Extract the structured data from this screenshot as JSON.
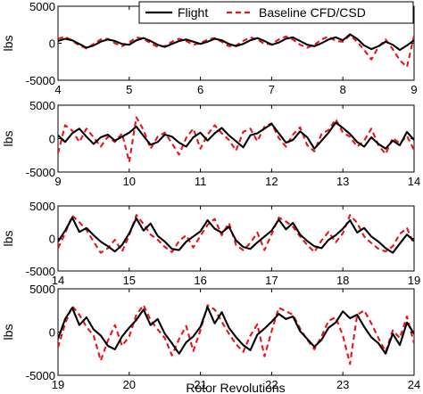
{
  "chart_data": {
    "type": "line",
    "xlabel": "Rotor Revolutions",
    "ylabel": "lbs",
    "legend": {
      "placement": "top",
      "entries": [
        {
          "label": "Flight",
          "color": "#000000",
          "style": "solid"
        },
        {
          "label": "Baseline CFD/CSD",
          "color": "#e8141c",
          "style": "dashed"
        }
      ]
    },
    "ylim": [
      -5000,
      5000
    ],
    "yticks": [
      5000,
      0,
      -5000
    ],
    "panels": [
      {
        "xlim": [
          4,
          9
        ],
        "xticks": [
          4,
          5,
          6,
          7,
          8,
          9
        ],
        "series": [
          {
            "name": "Flight",
            "x": [
              4.0,
              4.1,
              4.2,
              4.3,
              4.4,
              4.5,
              4.6,
              4.7,
              4.8,
              4.9,
              5.0,
              5.1,
              5.2,
              5.3,
              5.4,
              5.5,
              5.6,
              5.7,
              5.8,
              5.9,
              6.0,
              6.1,
              6.2,
              6.3,
              6.4,
              6.5,
              6.6,
              6.7,
              6.8,
              6.9,
              7.0,
              7.1,
              7.2,
              7.3,
              7.4,
              7.5,
              7.6,
              7.7,
              7.8,
              7.9,
              8.0,
              8.1,
              8.2,
              8.3,
              8.4,
              8.5,
              8.6,
              8.7,
              8.8,
              8.9,
              9.0
            ],
            "y": [
              300,
              600,
              400,
              -100,
              -600,
              -300,
              200,
              500,
              300,
              -100,
              -200,
              400,
              700,
              300,
              -200,
              -500,
              -100,
              300,
              500,
              200,
              -100,
              200,
              600,
              400,
              -100,
              -400,
              -100,
              400,
              700,
              300,
              -200,
              100,
              600,
              800,
              300,
              -200,
              -400,
              0,
              500,
              800,
              400,
              1200,
              600,
              -300,
              -800,
              -400,
              200,
              -200,
              -900,
              -300,
              400
            ]
          },
          {
            "name": "Baseline CFD/CSD",
            "x": [
              4.0,
              4.1,
              4.2,
              4.3,
              4.4,
              4.5,
              4.6,
              4.7,
              4.8,
              4.9,
              5.0,
              5.1,
              5.2,
              5.3,
              5.4,
              5.5,
              5.6,
              5.7,
              5.8,
              5.9,
              6.0,
              6.1,
              6.2,
              6.3,
              6.4,
              6.5,
              6.6,
              6.7,
              6.8,
              6.9,
              7.0,
              7.1,
              7.2,
              7.3,
              7.4,
              7.5,
              7.6,
              7.7,
              7.8,
              7.9,
              8.0,
              8.1,
              8.2,
              8.3,
              8.4,
              8.5,
              8.6,
              8.7,
              8.8,
              8.9,
              9.0
            ],
            "y": [
              600,
              900,
              300,
              -300,
              -700,
              -100,
              500,
              600,
              0,
              -400,
              100,
              800,
              600,
              0,
              -500,
              -400,
              200,
              600,
              300,
              -200,
              0,
              500,
              700,
              200,
              -400,
              -300,
              300,
              800,
              500,
              -100,
              -100,
              500,
              900,
              500,
              -200,
              -600,
              -200,
              500,
              900,
              300,
              200,
              1100,
              200,
              -900,
              -2200,
              -500,
              500,
              -800,
              -2300,
              -3200,
              1000
            ]
          }
        ]
      },
      {
        "xlim": [
          9,
          14
        ],
        "xticks": [
          9,
          10,
          11,
          12,
          13,
          14
        ],
        "series": [
          {
            "name": "Flight",
            "x": [
              9.0,
              9.1,
              9.2,
              9.3,
              9.4,
              9.5,
              9.6,
              9.7,
              9.8,
              9.9,
              10.0,
              10.1,
              10.2,
              10.3,
              10.4,
              10.5,
              10.6,
              10.7,
              10.8,
              10.9,
              11.0,
              11.1,
              11.2,
              11.3,
              11.4,
              11.5,
              11.6,
              11.7,
              11.8,
              11.9,
              12.0,
              12.1,
              12.2,
              12.3,
              12.4,
              12.5,
              12.6,
              12.7,
              12.8,
              12.9,
              13.0,
              13.1,
              13.2,
              13.3,
              13.4,
              13.5,
              13.6,
              13.7,
              13.8,
              13.9,
              14.0
            ],
            "y": [
              500,
              -500,
              800,
              1500,
              300,
              -800,
              200,
              600,
              -300,
              300,
              900,
              1800,
              400,
              -900,
              -500,
              600,
              300,
              -600,
              -1200,
              200,
              900,
              -300,
              800,
              1600,
              500,
              -400,
              -1300,
              500,
              800,
              1500,
              2200,
              800,
              -600,
              -200,
              1100,
              200,
              -1500,
              -300,
              900,
              2400,
              1600,
              700,
              -500,
              -1200,
              200,
              -800,
              -1500,
              -300,
              -1000,
              1000,
              -200
            ]
          },
          {
            "name": "Baseline CFD/CSD",
            "x": [
              9.0,
              9.1,
              9.2,
              9.3,
              9.4,
              9.5,
              9.6,
              9.7,
              9.8,
              9.9,
              10.0,
              10.1,
              10.2,
              10.3,
              10.4,
              10.5,
              10.6,
              10.7,
              10.8,
              10.9,
              11.0,
              11.1,
              11.2,
              11.3,
              11.4,
              11.5,
              11.6,
              11.7,
              11.8,
              11.9,
              12.0,
              12.1,
              12.2,
              12.3,
              12.4,
              12.5,
              12.6,
              12.7,
              12.8,
              12.9,
              13.0,
              13.1,
              13.2,
              13.3,
              13.4,
              13.5,
              13.6,
              13.7,
              13.8,
              13.9,
              14.0
            ],
            "y": [
              -2200,
              2000,
              1200,
              -500,
              1500,
              200,
              -1200,
              300,
              -500,
              800,
              -3500,
              3200,
              1300,
              -1500,
              300,
              900,
              -700,
              -2400,
              100,
              1500,
              -1500,
              600,
              2000,
              800,
              -200,
              -1800,
              1000,
              1500,
              -400,
              1800,
              2300,
              100,
              -1200,
              600,
              1700,
              -1000,
              -1900,
              700,
              1300,
              2900,
              900,
              300,
              -1200,
              -300,
              1500,
              -1000,
              -2300,
              100,
              -700,
              400,
              -1700
            ]
          }
        ]
      },
      {
        "xlim": [
          14,
          19
        ],
        "xticks": [
          14,
          15,
          16,
          17,
          18,
          19
        ],
        "series": [
          {
            "name": "Flight",
            "x": [
              14.0,
              14.1,
              14.2,
              14.3,
              14.4,
              14.5,
              14.6,
              14.7,
              14.8,
              14.9,
              15.0,
              15.1,
              15.2,
              15.3,
              15.4,
              15.5,
              15.6,
              15.7,
              15.8,
              15.9,
              16.0,
              16.1,
              16.2,
              16.3,
              16.4,
              16.5,
              16.6,
              16.7,
              16.8,
              16.9,
              17.0,
              17.1,
              17.2,
              17.3,
              17.4,
              17.5,
              17.6,
              17.7,
              17.8,
              17.9,
              18.0,
              18.1,
              18.2,
              18.3,
              18.4,
              18.5,
              18.6,
              18.7,
              18.8,
              18.9,
              19.0
            ],
            "y": [
              -500,
              1200,
              3200,
              1000,
              1600,
              500,
              -500,
              -1200,
              -2000,
              -1000,
              800,
              3100,
              1200,
              2300,
              400,
              -500,
              -1600,
              -1800,
              -500,
              300,
              1100,
              2800,
              1500,
              900,
              1800,
              -300,
              -1300,
              -1600,
              -600,
              300,
              1200,
              2900,
              1400,
              2400,
              600,
              -400,
              -1200,
              -1500,
              -200,
              500,
              1500,
              2800,
              900,
              1600,
              300,
              -500,
              -1500,
              -2200,
              -800,
              600,
              -400
            ]
          },
          {
            "name": "Baseline CFD/CSD",
            "x": [
              14.0,
              14.1,
              14.2,
              14.3,
              14.4,
              14.5,
              14.6,
              14.7,
              14.8,
              14.9,
              15.0,
              15.1,
              15.2,
              15.3,
              15.4,
              15.5,
              15.6,
              15.7,
              15.8,
              15.9,
              16.0,
              16.1,
              16.2,
              16.3,
              16.4,
              16.5,
              16.6,
              16.7,
              16.8,
              16.9,
              17.0,
              17.1,
              17.2,
              17.3,
              17.4,
              17.5,
              17.6,
              17.7,
              17.8,
              17.9,
              18.0,
              18.1,
              18.2,
              18.3,
              18.4,
              18.5,
              18.6,
              18.7,
              18.8,
              18.9,
              19.0
            ],
            "y": [
              -1500,
              800,
              3500,
              2500,
              1300,
              -500,
              -2200,
              -1500,
              -200,
              -2000,
              500,
              3600,
              2200,
              600,
              -200,
              -1300,
              -2100,
              -400,
              500,
              -1400,
              400,
              2100,
              3000,
              500,
              2400,
              -1000,
              -1800,
              -700,
              900,
              -1800,
              700,
              3200,
              2600,
              1800,
              300,
              -1000,
              -2100,
              -300,
              1000,
              -600,
              800,
              3600,
              2400,
              300,
              -700,
              -1600,
              -2000,
              -1200,
              700,
              1600,
              -900
            ]
          }
        ]
      },
      {
        "xlim": [
          19,
          24
        ],
        "xticks": [
          19,
          20,
          21,
          22,
          23,
          24
        ],
        "series": [
          {
            "name": "Flight",
            "x": [
              19.0,
              19.1,
              19.2,
              19.3,
              19.4,
              19.5,
              19.6,
              19.7,
              19.8,
              19.9,
              20.0,
              20.1,
              20.2,
              20.3,
              20.4,
              20.5,
              20.6,
              20.7,
              20.8,
              20.9,
              21.0,
              21.1,
              21.2,
              21.3,
              21.4,
              21.5,
              21.6,
              21.7,
              21.8,
              21.9,
              22.0,
              22.1,
              22.2,
              22.3,
              22.4,
              22.5,
              22.6,
              22.7,
              22.8,
              22.9,
              23.0,
              23.1,
              23.2,
              23.3,
              23.4,
              23.5,
              23.6,
              23.7,
              23.8,
              23.9,
              24.0
            ],
            "y": [
              -800,
              1500,
              2800,
              800,
              1700,
              300,
              -400,
              -1600,
              -2000,
              -500,
              500,
              1400,
              2600,
              800,
              1500,
              -200,
              -1300,
              -2500,
              -1200,
              -500,
              600,
              2900,
              1000,
              2300,
              500,
              -600,
              -1500,
              -2100,
              -300,
              400,
              1200,
              2100,
              1500,
              1800,
              100,
              -800,
              -1700,
              -900,
              500,
              1100,
              2400,
              1600,
              2000,
              600,
              -600,
              -1300,
              -2500,
              -200,
              -1500,
              1100,
              -200
            ]
          },
          {
            "name": "Baseline CFD/CSD",
            "x": [
              19.0,
              19.1,
              19.2,
              19.3,
              19.4,
              19.5,
              19.6,
              19.7,
              19.8,
              19.9,
              20.0,
              20.1,
              20.2,
              20.3,
              20.4,
              20.5,
              20.6,
              20.7,
              20.8,
              20.9,
              21.0,
              21.1,
              21.2,
              21.3,
              21.4,
              21.5,
              21.6,
              21.7,
              21.8,
              21.9,
              22.0,
              22.1,
              22.2,
              22.3,
              22.4,
              22.5,
              22.6,
              22.7,
              22.8,
              22.9,
              23.0,
              23.1,
              23.2,
              23.3,
              23.4,
              23.5,
              23.6,
              23.7,
              23.8,
              23.9,
              24.0
            ],
            "y": [
              -1800,
              1000,
              3000,
              2000,
              600,
              -400,
              -3300,
              -1000,
              800,
              -1600,
              -500,
              2000,
              3100,
              1400,
              300,
              -700,
              -2700,
              -800,
              700,
              -2200,
              200,
              3100,
              2600,
              1200,
              -200,
              -1400,
              -2300,
              -400,
              900,
              -2800,
              100,
              2800,
              2400,
              2000,
              400,
              -900,
              -2000,
              -500,
              1300,
              1700,
              -400,
              -3700,
              2000,
              2500,
              1000,
              -700,
              -2300,
              200,
              -700,
              1800,
              -1300
            ]
          }
        ]
      }
    ]
  }
}
